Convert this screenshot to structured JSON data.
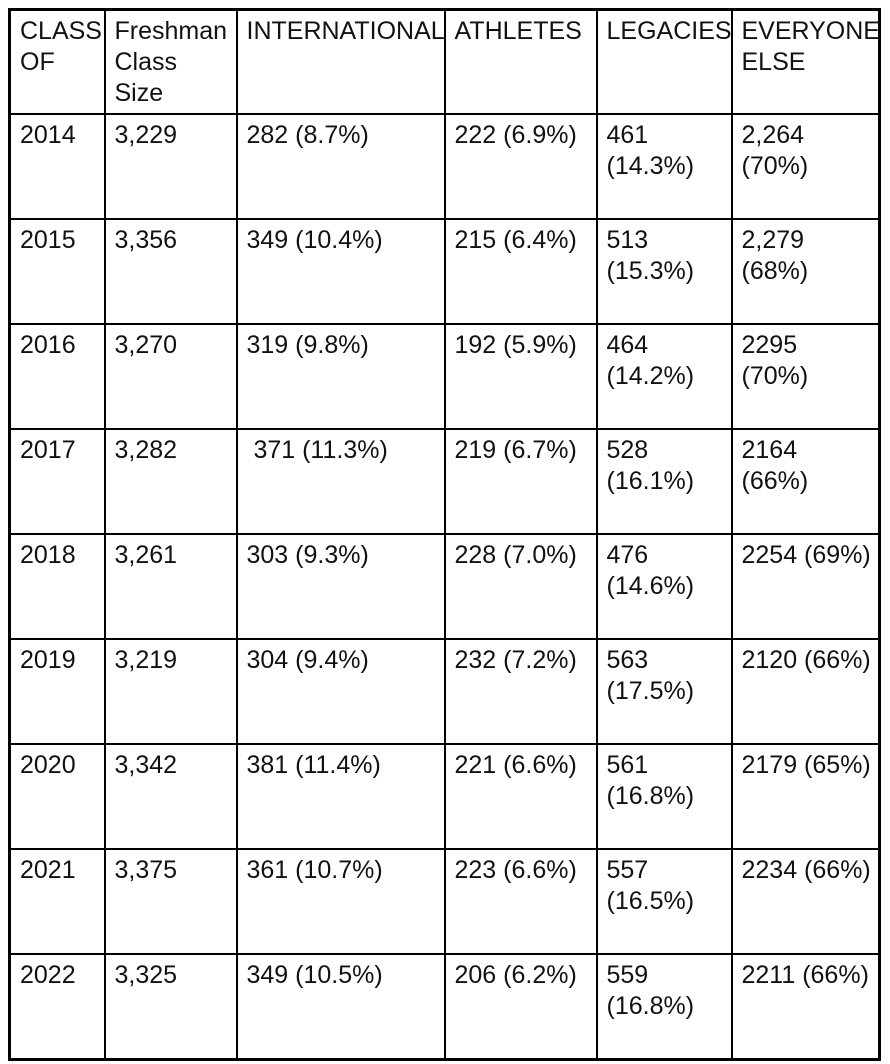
{
  "page": {
    "background_color": "#ffffff",
    "text_color": "#111111",
    "border_color": "#000000"
  },
  "table": {
    "headers": [
      "CLASS\nOF",
      "Freshman\nClass\nSize",
      "INTERNATIONAL",
      "ATHLETES",
      "LEGACIES",
      "EVERYONE\nELSE"
    ],
    "rows": [
      {
        "cells": [
          "2014",
          "3,229",
          "282 (8.7%)",
          "222 (6.9%)",
          "461\n(14.3%)",
          "2,264\n(70%)"
        ]
      },
      {
        "cells": [
          "2015",
          "3,356",
          "349 (10.4%)",
          "215 (6.4%)",
          "513\n(15.3%)",
          "2,279\n(68%)"
        ]
      },
      {
        "cells": [
          "2016",
          "3,270",
          "319 (9.8%)",
          "192 (5.9%)",
          "464\n(14.2%)",
          "2295\n(70%)"
        ]
      },
      {
        "cells": [
          "2017",
          "3,282",
          " 371 (11.3%)",
          "219 (6.7%)",
          "528\n(16.1%)",
          "2164\n(66%)"
        ]
      },
      {
        "cells": [
          "2018",
          "3,261",
          "303 (9.3%)",
          "228 (7.0%)",
          "476\n(14.6%)",
          "2254 (69%)"
        ]
      },
      {
        "cells": [
          "2019",
          "3,219",
          "304 (9.4%)",
          "232 (7.2%)",
          "563\n(17.5%)",
          "2120 (66%)"
        ]
      },
      {
        "cells": [
          "2020",
          "3,342",
          "381 (11.4%)",
          "221 (6.6%)",
          "561\n(16.8%)",
          "2179 (65%)"
        ]
      },
      {
        "cells": [
          "2021",
          "3,375",
          "361 (10.7%)",
          "223 (6.6%)",
          "557\n(16.5%)",
          "2234 (66%)"
        ]
      },
      {
        "cells": [
          "2022",
          "3,325",
          "349 (10.5%)",
          "206 (6.2%)",
          "559\n(16.8%)",
          "2211 (66%)"
        ]
      }
    ]
  },
  "chart_data": {
    "type": "table",
    "title": "",
    "columns": [
      "CLASS OF",
      "Freshman Class Size",
      "INTERNATIONAL",
      "ATHLETES",
      "LEGACIES",
      "EVERYONE ELSE"
    ],
    "rows": [
      [
        "2014",
        "3,229",
        "282 (8.7%)",
        "222 (6.9%)",
        "461 (14.3%)",
        "2,264 (70%)"
      ],
      [
        "2015",
        "3,356",
        "349 (10.4%)",
        "215 (6.4%)",
        "513 (15.3%)",
        "2,279 (68%)"
      ],
      [
        "2016",
        "3,270",
        "319 (9.8%)",
        "192 (5.9%)",
        "464 (14.2%)",
        "2295 (70%)"
      ],
      [
        "2017",
        "3,282",
        "371 (11.3%)",
        "219 (6.7%)",
        "528 (16.1%)",
        "2164 (66%)"
      ],
      [
        "2018",
        "3,261",
        "303 (9.3%)",
        "228 (7.0%)",
        "476 (14.6%)",
        "2254 (69%)"
      ],
      [
        "2019",
        "3,219",
        "304 (9.4%)",
        "232 (7.2%)",
        "563 (17.5%)",
        "2120 (66%)"
      ],
      [
        "2020",
        "3,342",
        "381 (11.4%)",
        "221 (6.6%)",
        "561 (16.8%)",
        "2179 (65%)"
      ],
      [
        "2021",
        "3,375",
        "361 (10.7%)",
        "223 (6.6%)",
        "557 (16.5%)",
        "2234 (66%)"
      ],
      [
        "2022",
        "3,325",
        "349 (10.5%)",
        "206 (6.2%)",
        "559 (16.8%)",
        "2211 (66%)"
      ]
    ],
    "series": [
      {
        "name": "Freshman Class Size",
        "x": [
          2014,
          2015,
          2016,
          2017,
          2018,
          2019,
          2020,
          2021,
          2022
        ],
        "values": [
          3229,
          3356,
          3270,
          3282,
          3261,
          3219,
          3342,
          3375,
          3325
        ]
      },
      {
        "name": "International",
        "values": [
          282,
          349,
          319,
          371,
          303,
          304,
          381,
          361,
          349
        ],
        "percent": [
          8.7,
          10.4,
          9.8,
          11.3,
          9.3,
          9.4,
          11.4,
          10.7,
          10.5
        ]
      },
      {
        "name": "Athletes",
        "values": [
          222,
          215,
          192,
          219,
          228,
          232,
          221,
          223,
          206
        ],
        "percent": [
          6.9,
          6.4,
          5.9,
          6.7,
          7.0,
          7.2,
          6.6,
          6.6,
          6.2
        ]
      },
      {
        "name": "Legacies",
        "values": [
          461,
          513,
          464,
          528,
          476,
          563,
          561,
          557,
          559
        ],
        "percent": [
          14.3,
          15.3,
          14.2,
          16.1,
          14.6,
          17.5,
          16.8,
          16.5,
          16.8
        ]
      },
      {
        "name": "Everyone Else",
        "values": [
          2264,
          2279,
          2295,
          2164,
          2254,
          2120,
          2179,
          2234,
          2211
        ],
        "percent": [
          70,
          68,
          70,
          66,
          69,
          66,
          65,
          66,
          66
        ]
      }
    ],
    "legend_position": "none",
    "grid": true
  }
}
